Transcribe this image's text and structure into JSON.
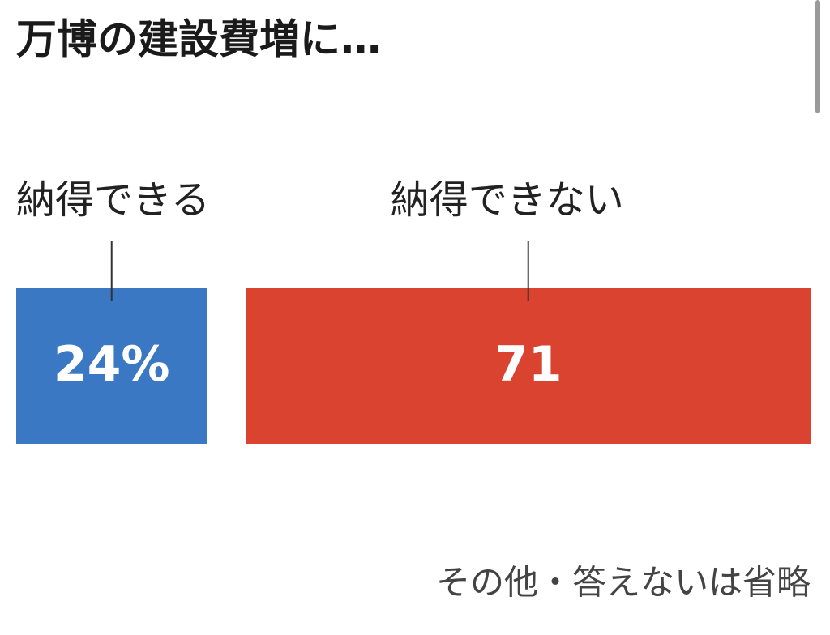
{
  "chart_data": {
    "type": "bar",
    "title": "万博の建設費増に…",
    "categories": [
      "納得できる",
      "納得できない"
    ],
    "values": [
      24,
      71
    ],
    "value_labels": [
      "24%",
      "71"
    ],
    "colors": [
      "#3a78c3",
      "#d94330"
    ],
    "note": "その他・答えないは省略"
  }
}
